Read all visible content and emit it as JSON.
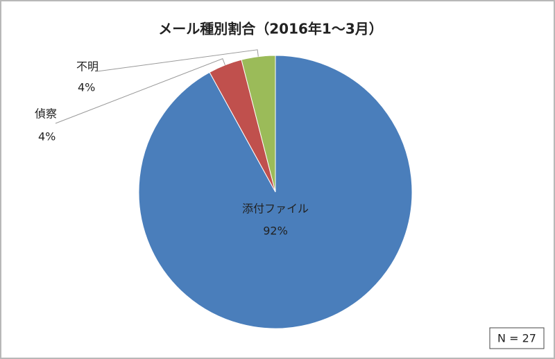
{
  "chart_data": {
    "type": "pie",
    "title": "メール種別割合（2016年1～3月）",
    "categories": [
      "添付ファイル",
      "偵察",
      "不明"
    ],
    "values": [
      92,
      4,
      4
    ],
    "value_labels": [
      "92%",
      "4%",
      "4%"
    ],
    "colors": [
      "#4a7ebb",
      "#c0504d",
      "#9bbb59"
    ],
    "annotation": "N = 27"
  }
}
